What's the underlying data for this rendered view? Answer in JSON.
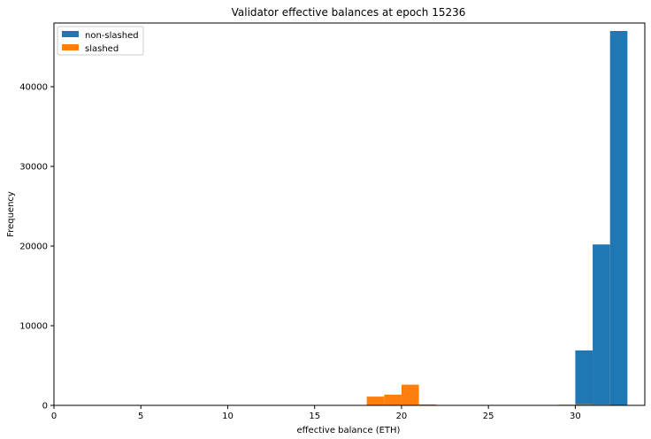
{
  "chart_data": {
    "type": "bar",
    "title": "Validator effective balances at epoch 15236",
    "xlabel": "effective balance (ETH)",
    "ylabel": "Frequency",
    "xlim": [
      0,
      34
    ],
    "ylim": [
      0,
      48000
    ],
    "xticks": [
      0,
      5,
      10,
      15,
      20,
      25,
      30
    ],
    "yticks": [
      0,
      10000,
      20000,
      30000,
      40000
    ],
    "grid": false,
    "legend": {
      "placement": "top-left"
    },
    "series": [
      {
        "name": "non-slashed",
        "color": "#1f77b4",
        "bins": [
          {
            "x0": 29,
            "x1": 30,
            "value": 60
          },
          {
            "x0": 30,
            "x1": 31,
            "value": 6900
          },
          {
            "x0": 31,
            "x1": 32,
            "value": 20200
          },
          {
            "x0": 32,
            "x1": 33,
            "value": 47000
          }
        ]
      },
      {
        "name": "slashed",
        "color": "#ff7f0e",
        "bins": [
          {
            "x0": 18,
            "x1": 19,
            "value": 1100
          },
          {
            "x0": 19,
            "x1": 20,
            "value": 1350
          },
          {
            "x0": 20,
            "x1": 21,
            "value": 2600
          },
          {
            "x0": 21,
            "x1": 22,
            "value": 120
          },
          {
            "x0": 29,
            "x1": 30,
            "value": 80
          },
          {
            "x0": 30,
            "x1": 31,
            "value": 150
          },
          {
            "x0": 31,
            "x1": 32,
            "value": 120
          }
        ]
      }
    ]
  }
}
